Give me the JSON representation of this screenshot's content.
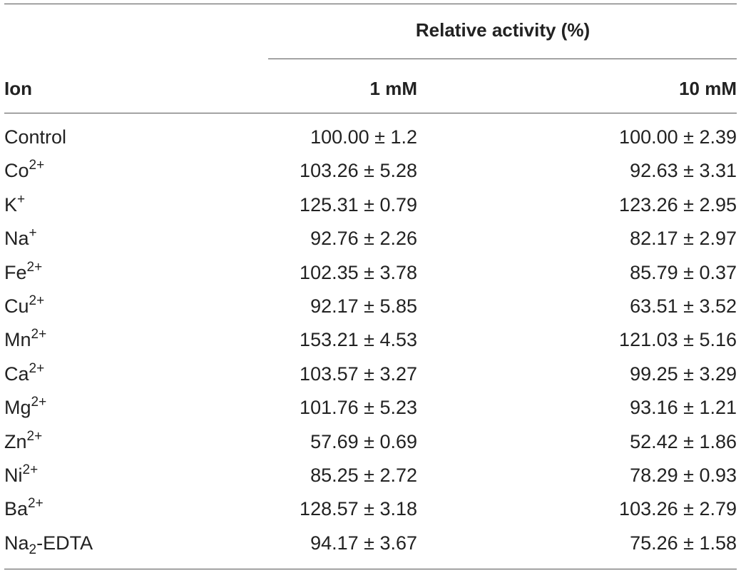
{
  "header": {
    "group_label": "Relative activity (%)",
    "col_ion": "Ion",
    "col_1mM": "1 mM",
    "col_10mM": "10 mM"
  },
  "rows": [
    {
      "ion": "Control",
      "sup": "",
      "sub": "",
      "suffix": "",
      "v1": "100.00 ± 1.2",
      "v10": "100.00 ± 2.39"
    },
    {
      "ion": "Co",
      "sup": "2+",
      "sub": "",
      "suffix": "",
      "v1": "103.26 ± 5.28",
      "v10": "92.63 ± 3.31"
    },
    {
      "ion": "K",
      "sup": "+",
      "sub": "",
      "suffix": "",
      "v1": "125.31 ± 0.79",
      "v10": "123.26 ± 2.95"
    },
    {
      "ion": "Na",
      "sup": "+",
      "sub": "",
      "suffix": "",
      "v1": "92.76 ± 2.26",
      "v10": "82.17 ± 2.97"
    },
    {
      "ion": "Fe",
      "sup": "2+",
      "sub": "",
      "suffix": "",
      "v1": "102.35 ± 3.78",
      "v10": "85.79 ± 0.37"
    },
    {
      "ion": "Cu",
      "sup": "2+",
      "sub": "",
      "suffix": "",
      "v1": "92.17 ± 5.85",
      "v10": "63.51 ± 3.52"
    },
    {
      "ion": "Mn",
      "sup": "2+",
      "sub": "",
      "suffix": "",
      "v1": "153.21 ± 4.53",
      "v10": "121.03 ± 5.16"
    },
    {
      "ion": "Ca",
      "sup": "2+",
      "sub": "",
      "suffix": "",
      "v1": "103.57 ± 3.27",
      "v10": "99.25 ± 3.29"
    },
    {
      "ion": "Mg",
      "sup": "2+",
      "sub": "",
      "suffix": "",
      "v1": "101.76 ± 5.23",
      "v10": "93.16 ± 1.21"
    },
    {
      "ion": "Zn",
      "sup": "2+",
      "sub": "",
      "suffix": "",
      "v1": "57.69 ± 0.69",
      "v10": "52.42 ± 1.86"
    },
    {
      "ion": "Ni",
      "sup": "2+",
      "sub": "",
      "suffix": "",
      "v1": "85.25 ± 2.72",
      "v10": "78.29 ± 0.93"
    },
    {
      "ion": "Ba",
      "sup": "2+",
      "sub": "",
      "suffix": "",
      "v1": "128.57 ± 3.18",
      "v10": "103.26 ± 2.79"
    },
    {
      "ion": "Na",
      "sup": "",
      "sub": "2",
      "suffix": "-EDTA",
      "v1": "94.17 ± 3.67",
      "v10": "75.26 ± 1.58"
    }
  ]
}
